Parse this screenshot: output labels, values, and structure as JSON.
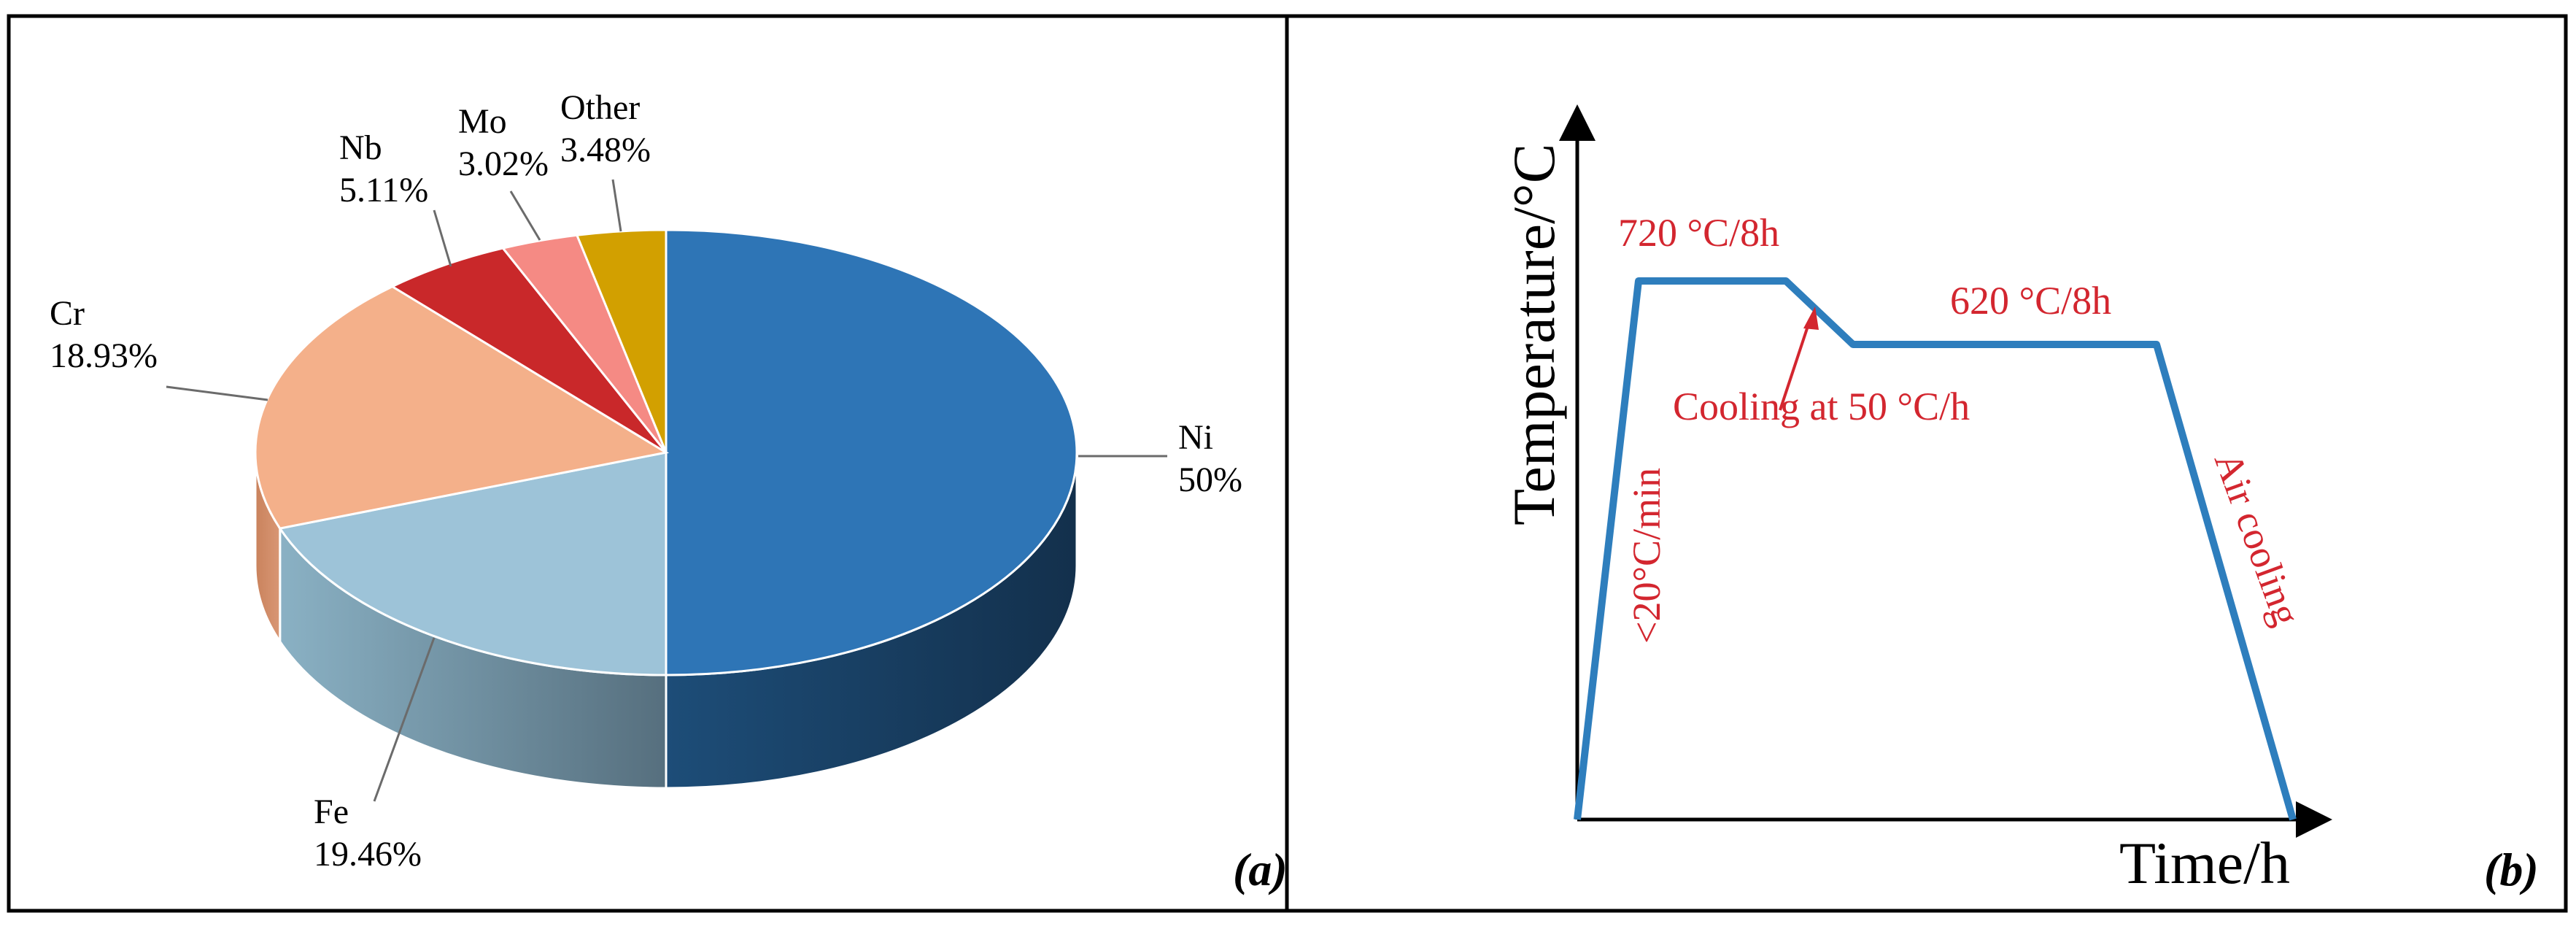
{
  "colors": {
    "ni": "#2e75b6",
    "fe": "#9dc3d8",
    "cr": "#f4b08a",
    "nb": "#c9282a",
    "mo": "#f58a84",
    "other": "#d2a000",
    "curve": "#2e7ebd",
    "annotation": "#d3262f",
    "frame": "#000000"
  },
  "chart_data": [
    {
      "type": "pie",
      "panel_label": "(a)",
      "categories": [
        "Ni",
        "Fe",
        "Cr",
        "Nb",
        "Mo",
        "Other"
      ],
      "values": [
        50,
        19.46,
        18.93,
        5.11,
        3.02,
        3.48
      ],
      "labels": [
        {
          "name": "Ni",
          "value": "50%"
        },
        {
          "name": "Fe",
          "value": "19.46%"
        },
        {
          "name": "Cr",
          "value": "18.93%"
        },
        {
          "name": "Nb",
          "value": "5.11%"
        },
        {
          "name": "Mo",
          "value": "3.02%"
        },
        {
          "name": "Other",
          "value": "3.48%"
        }
      ],
      "style": "3d"
    },
    {
      "type": "line",
      "panel_label": "(b)",
      "xlabel": "Time/h",
      "ylabel": "Temperature/°C",
      "x_ticks": "none",
      "y_ticks": "none",
      "stages": [
        {
          "name": "heating",
          "label": "<20°C/min"
        },
        {
          "name": "hold-1",
          "label": "720 °C/8h"
        },
        {
          "name": "cooling",
          "label": "Cooling at 50 °C/h"
        },
        {
          "name": "hold-2",
          "label": "620 °C/8h"
        },
        {
          "name": "air-cool",
          "label": "Air cooling"
        }
      ]
    }
  ]
}
